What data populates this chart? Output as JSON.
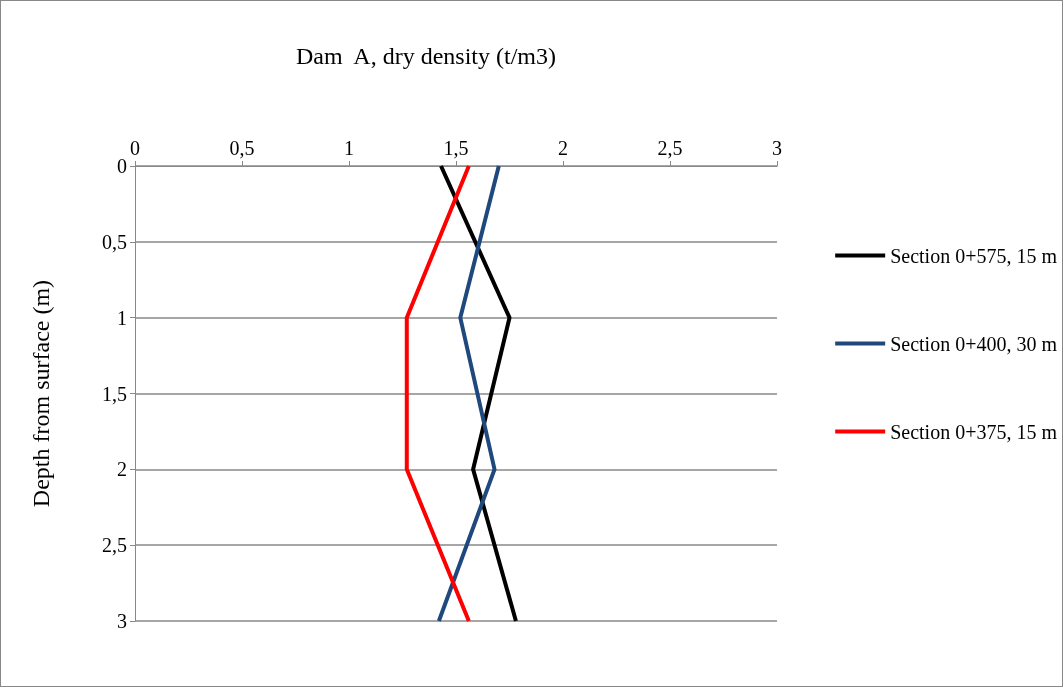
{
  "chart_data": {
    "type": "line",
    "title": "Dam  A, dry density (t/m3)",
    "ylabel": "Depth from surface (m)",
    "orientation": "horizontal",
    "x": [
      0,
      1,
      2,
      3
    ],
    "series": [
      {
        "name": "Section 0+575, 15 m",
        "color": "#000000",
        "values": [
          1.43,
          1.75,
          1.58,
          1.78
        ]
      },
      {
        "name": "Section 0+400, 30 m",
        "color": "#1f497d",
        "values": [
          1.7,
          1.52,
          1.68,
          1.42
        ]
      },
      {
        "name": "Section 0+375, 15 m",
        "color": "#ff0000",
        "values": [
          1.56,
          1.27,
          1.27,
          1.56
        ]
      }
    ],
    "xlim": [
      0,
      3
    ],
    "xticks": [
      0,
      {
        "value": 0.5,
        "label": "0,5"
      },
      1,
      {
        "value": 1.5,
        "label": "1,5"
      },
      2,
      {
        "value": 2.5,
        "label": "2,5"
      },
      3
    ],
    "ylim": [
      3,
      0
    ],
    "yticks": [
      0,
      {
        "value": 0.5,
        "label": "0,5"
      },
      1,
      {
        "value": 1.5,
        "label": "1,5"
      },
      2,
      {
        "value": 2.5,
        "label": "2,5"
      },
      3
    ],
    "grid": "y",
    "legend": "right",
    "marker": "none",
    "line_style": "solid"
  }
}
